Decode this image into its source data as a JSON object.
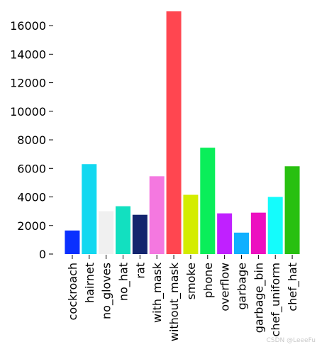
{
  "chart_data": {
    "type": "bar",
    "title": "",
    "xlabel": "",
    "ylabel": "",
    "ylim": [
      0,
      17000
    ],
    "yticks": [
      0,
      2000,
      4000,
      6000,
      8000,
      10000,
      12000,
      14000,
      16000
    ],
    "grid": false,
    "legend": "none",
    "categories": [
      "cockroach",
      "hairnet",
      "no_gloves",
      "no_hat",
      "rat",
      "with_mask",
      "without_mask",
      "smoke",
      "phone",
      "overflow",
      "garbage",
      "garbage_bin",
      "chef_uniform",
      "chef_hat"
    ],
    "values": [
      1650,
      6300,
      3000,
      3350,
      2750,
      5450,
      17000,
      4150,
      7450,
      2850,
      1500,
      2900,
      4000,
      6150
    ],
    "colors": [
      "#0a30ff",
      "#12d8f0",
      "#f0f0f0",
      "#12e0c0",
      "#14256e",
      "#f478e0",
      "#ff4650",
      "#d4ec00",
      "#0aee5a",
      "#c020ff",
      "#10b0ff",
      "#ec10c0",
      "#14fcfc",
      "#28c010"
    ]
  },
  "watermark": "CSDN @LeeeFu"
}
